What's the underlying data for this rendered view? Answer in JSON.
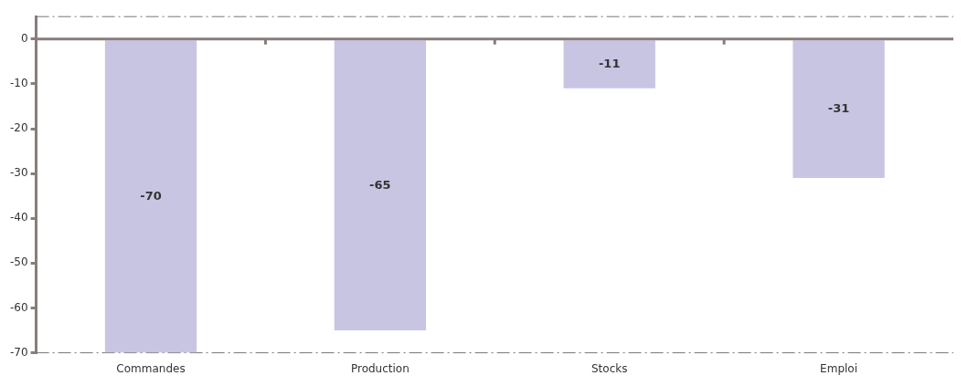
{
  "chart_data": {
    "type": "bar",
    "categories": [
      "Commandes",
      "Production",
      "Stocks",
      "Emploi"
    ],
    "values": [
      -70,
      -65,
      -11,
      -31
    ],
    "color": "#c8c5e3",
    "ylim": [
      -70,
      5
    ],
    "yticks": [
      -70,
      -60,
      -50,
      -40,
      -30,
      -20,
      -10,
      0
    ],
    "data_labels": true
  }
}
